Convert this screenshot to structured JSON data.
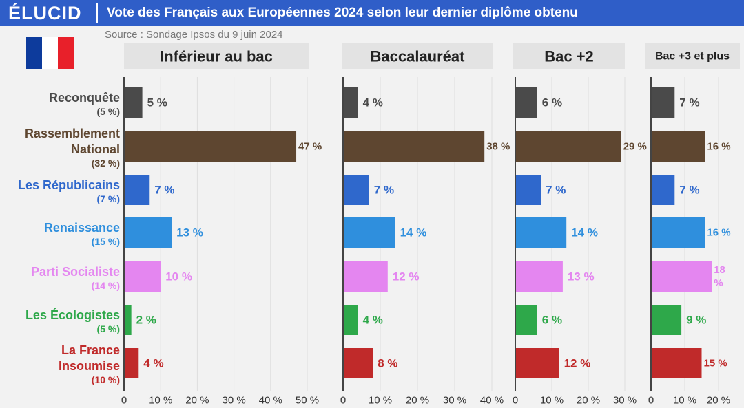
{
  "header": {
    "brand": "ÉLUCID",
    "title": "Vote des Français aux Européennes 2024 selon leur dernier diplôme obtenu",
    "source": "Source : Sondage Ipsos du 9 juin 2024",
    "colors": {
      "bar": "#2f5ec8",
      "flag": [
        "#0d3b9c",
        "#ffffff",
        "#e8202a"
      ]
    }
  },
  "parties": [
    {
      "name": "Reconquête",
      "overall": "(5 %)",
      "color": "#4a4a4a"
    },
    {
      "name": "Rassemblement\nNational",
      "overall": "(32 %)",
      "color": "#5e4630"
    },
    {
      "name": "Les Républicains",
      "overall": "(7 %)",
      "color": "#2f68cc"
    },
    {
      "name": "Renaissance",
      "overall": "(15 %)",
      "color": "#2f8fdd"
    },
    {
      "name": "Parti Socialiste",
      "overall": "(14 %)",
      "color": "#e486f0"
    },
    {
      "name": "Les Écologistes",
      "overall": "(5 %)",
      "color": "#2ea84a"
    },
    {
      "name": "La France\nInsoumise",
      "overall": "(10 %)",
      "color": "#c02a2a"
    }
  ],
  "chart_data": {
    "type": "bar",
    "orientation": "horizontal",
    "title": "Vote des Français aux Européennes 2024 selon leur dernier diplôme obtenu",
    "categories": [
      "Reconquête",
      "Rassemblement National",
      "Les Républicains",
      "Renaissance",
      "Parti Socialiste",
      "Les Écologistes",
      "La France Insoumise"
    ],
    "series": [
      {
        "name": "Inférieur au bac",
        "values": [
          5,
          47,
          7,
          13,
          10,
          2,
          4
        ],
        "xlim": [
          0,
          50
        ],
        "ticks": [
          "0",
          "10 %",
          "20 %",
          "30 %",
          "40 %",
          "50 %"
        ]
      },
      {
        "name": "Baccalauréat",
        "values": [
          4,
          38,
          7,
          14,
          12,
          4,
          8
        ],
        "xlim": [
          0,
          40
        ],
        "ticks": [
          "0",
          "10 %",
          "20 %",
          "30 %",
          "40 %"
        ]
      },
      {
        "name": "Bac +2",
        "values": [
          6,
          29,
          7,
          14,
          13,
          6,
          12
        ],
        "xlim": [
          0,
          30
        ],
        "ticks": [
          "0",
          "10 %",
          "20 %",
          "30 %"
        ]
      },
      {
        "name": "Bac +3 et plus",
        "values": [
          7,
          16,
          7,
          16,
          18,
          9,
          15
        ],
        "xlim": [
          0,
          20
        ],
        "ticks": [
          "0",
          "10 %",
          "20 %"
        ]
      }
    ],
    "value_labels": [
      [
        "5 %",
        "47 %",
        "7 %",
        "13 %",
        "10 %",
        "2 %",
        "4 %"
      ],
      [
        "4 %",
        "38 %",
        "7 %",
        "14 %",
        "12 %",
        "4 %",
        "8 %"
      ],
      [
        "6 %",
        "29 %",
        "7 %",
        "14 %",
        "13 %",
        "6 %",
        "12 %"
      ],
      [
        "7 %",
        "16 %",
        "7 %",
        "16 %",
        "18\n%",
        "9 %",
        "15 %"
      ]
    ]
  }
}
